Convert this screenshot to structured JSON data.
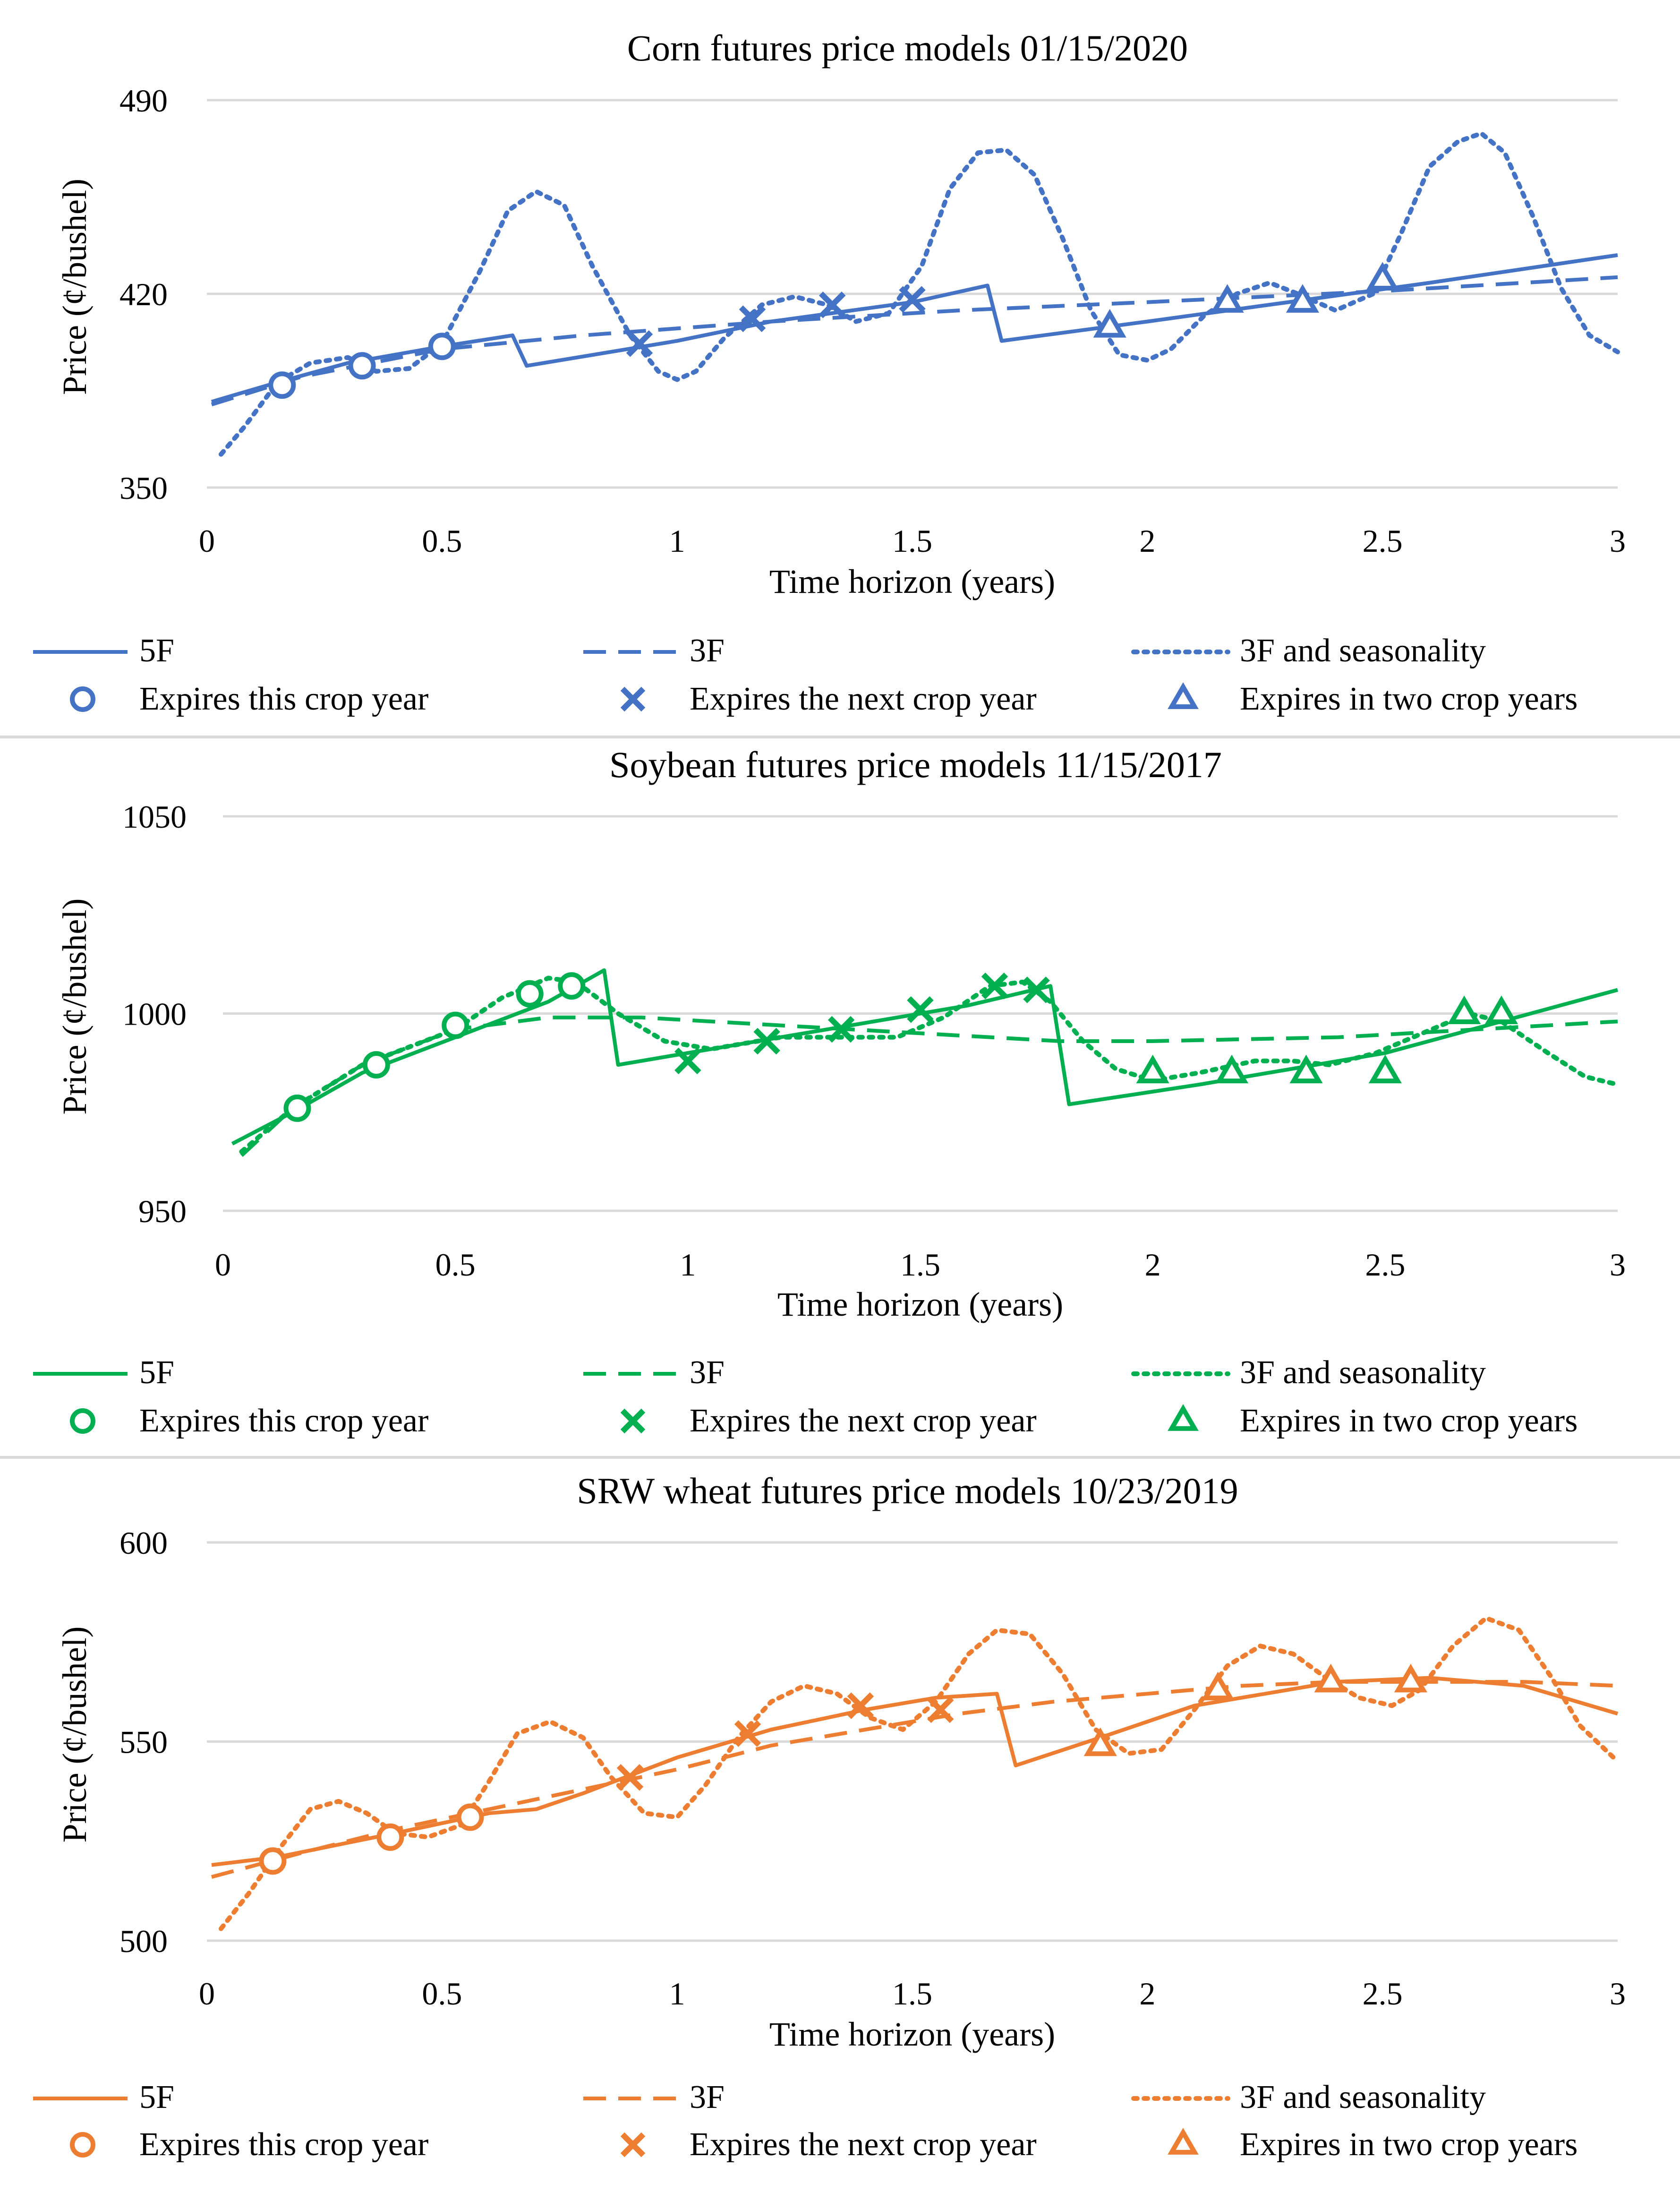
{
  "legend_labels": {
    "s5F": "5F",
    "s3F": "3F",
    "s3FS": "3F and seasonality",
    "this_year": "Expires this crop year",
    "next_year": "Expires the next crop year",
    "two_years": "Expires in two crop years"
  },
  "chart_data": [
    {
      "type": "line",
      "title": "Corn futures price models 01/15/2020",
      "xlabel": "Time horizon (years)",
      "ylabel": "Price (¢/bushel)",
      "xlim": [
        0,
        3
      ],
      "ylim": [
        350,
        490
      ],
      "xticks": [
        "0",
        "0.5",
        "1",
        "1.5",
        "2",
        "2.5",
        "3"
      ],
      "yticks": [
        "350",
        "420",
        "490"
      ],
      "grid": true,
      "legend_position": "bottom",
      "color": "#4472C4",
      "series": [
        {
          "name": "5F",
          "style": "solid",
          "x": [
            0.01,
            0.15,
            0.3,
            0.5,
            0.65,
            0.68,
            1.0,
            1.2,
            1.5,
            1.66,
            1.69,
            2.0,
            2.3,
            2.6,
            3.0
          ],
          "y": [
            381,
            388,
            395,
            401,
            405,
            394,
            403,
            410,
            417,
            423,
            403,
            410,
            417,
            424,
            434
          ]
        },
        {
          "name": "3F",
          "style": "dashed",
          "x": [
            0.01,
            0.2,
            0.5,
            0.8,
            1.2,
            1.6,
            2.0,
            2.5,
            3.0
          ],
          "y": [
            380,
            390,
            400,
            405,
            410,
            414,
            417,
            421,
            426
          ]
        },
        {
          "name": "3F and seasonality",
          "style": "dotted",
          "x": [
            0.03,
            0.08,
            0.15,
            0.22,
            0.3,
            0.36,
            0.43,
            0.5,
            0.58,
            0.64,
            0.7,
            0.76,
            0.82,
            0.9,
            0.96,
            1.0,
            1.04,
            1.1,
            1.18,
            1.25,
            1.32,
            1.38,
            1.45,
            1.52,
            1.58,
            1.64,
            1.7,
            1.76,
            1.82,
            1.88,
            1.94,
            2.0,
            2.05,
            2.12,
            2.19,
            2.26,
            2.32,
            2.4,
            2.48,
            2.54,
            2.6,
            2.66,
            2.71,
            2.76,
            2.82,
            2.88,
            2.94,
            3.0
          ],
          "y": [
            362,
            372,
            388,
            395,
            397,
            392,
            393,
            402,
            428,
            450,
            457,
            452,
            430,
            405,
            392,
            389,
            392,
            404,
            416,
            419,
            416,
            410,
            413,
            430,
            458,
            471,
            472,
            463,
            440,
            414,
            398,
            396,
            400,
            412,
            420,
            424,
            420,
            414,
            420,
            442,
            466,
            475,
            478,
            471,
            448,
            422,
            405,
            399
          ]
        }
      ],
      "markers": {
        "this_year": {
          "symbol": "circle",
          "x": [
            0.16,
            0.33,
            0.5
          ],
          "y": [
            387,
            394,
            401
          ]
        },
        "next_year": {
          "symbol": "x",
          "x": [
            0.92,
            1.16,
            1.33,
            1.5
          ],
          "y": [
            402,
            411,
            416,
            418
          ]
        },
        "two_years": {
          "symbol": "triangle",
          "x": [
            1.92,
            2.17,
            2.33,
            2.5
          ],
          "y": [
            408,
            417,
            417,
            425
          ]
        }
      }
    },
    {
      "type": "line",
      "title": "Soybean futures price models 11/15/2017",
      "xlabel": "Time horizon (years)",
      "ylabel": "Price (¢/bushel)",
      "xlim": [
        0,
        3
      ],
      "ylim": [
        950,
        1050
      ],
      "xticks": [
        "0",
        "0.5",
        "1",
        "1.5",
        "2",
        "2.5",
        "3"
      ],
      "yticks": [
        "950",
        "1000",
        "1050"
      ],
      "grid": true,
      "legend_position": "bottom",
      "color": "#00B050",
      "series": [
        {
          "name": "5F",
          "style": "solid",
          "x": [
            0.02,
            0.15,
            0.3,
            0.5,
            0.7,
            0.82,
            0.85,
            1.0,
            1.3,
            1.6,
            1.78,
            1.82,
            2.1,
            2.5,
            3.0
          ],
          "y": [
            967,
            975,
            985,
            994,
            1003,
            1011,
            987,
            990,
            996,
            1002,
            1007,
            977,
            982,
            990,
            1006
          ]
        },
        {
          "name": "3F",
          "style": "dashed",
          "x": [
            0.04,
            0.15,
            0.3,
            0.5,
            0.7,
            0.9,
            1.2,
            1.5,
            1.8,
            2.0,
            2.4,
            2.7,
            3.0
          ],
          "y": [
            964,
            976,
            987,
            996,
            999,
            999,
            997,
            995,
            993,
            993,
            994,
            996,
            998
          ]
        },
        {
          "name": "3F and seasonality",
          "style": "dotted",
          "x": [
            0.04,
            0.15,
            0.3,
            0.5,
            0.6,
            0.7,
            0.76,
            0.85,
            0.95,
            1.05,
            1.2,
            1.35,
            1.45,
            1.55,
            1.65,
            1.72,
            1.78,
            1.85,
            1.92,
            2.0,
            2.1,
            2.22,
            2.3,
            2.38,
            2.48,
            2.6,
            2.68,
            2.75,
            2.85,
            2.93,
            3.0
          ],
          "y": [
            965,
            976,
            987,
            996,
            1004,
            1009,
            1008,
            1000,
            993,
            991,
            994,
            994,
            994,
            999,
            1007,
            1008,
            1003,
            993,
            986,
            983,
            985,
            988,
            988,
            987,
            990,
            996,
            1000,
            998,
            990,
            984,
            982
          ]
        }
      ],
      "markers": {
        "this_year": {
          "symbol": "circle",
          "x": [
            0.16,
            0.33,
            0.5,
            0.66,
            0.75
          ],
          "y": [
            976,
            987,
            997,
            1005,
            1007
          ]
        },
        "next_year": {
          "symbol": "x",
          "x": [
            1.0,
            1.17,
            1.33,
            1.5,
            1.66,
            1.75
          ],
          "y": [
            988,
            993,
            996,
            1001,
            1007,
            1006
          ]
        },
        "two_years": {
          "symbol": "triangle",
          "x": [
            2.0,
            2.17,
            2.33,
            2.5,
            2.67,
            2.75
          ],
          "y": [
            985,
            985,
            985,
            985,
            1000,
            1000
          ]
        }
      }
    },
    {
      "type": "line",
      "title": "SRW wheat futures price models 10/23/2019",
      "xlabel": "Time horizon (years)",
      "ylabel": "Price (¢/bushel)",
      "xlim": [
        0,
        3
      ],
      "ylim": [
        500,
        600
      ],
      "xticks": [
        "0",
        "0.5",
        "1",
        "1.5",
        "2",
        "2.5",
        "3"
      ],
      "yticks": [
        "500",
        "550",
        "600"
      ],
      "grid": true,
      "legend_position": "bottom",
      "color": "#ED7D31",
      "series": [
        {
          "name": "5F",
          "style": "solid",
          "x": [
            0.01,
            0.15,
            0.4,
            0.6,
            0.7,
            0.8,
            1.0,
            1.2,
            1.4,
            1.55,
            1.68,
            1.72,
            1.9,
            2.1,
            2.4,
            2.6,
            2.8,
            3.0
          ],
          "y": [
            519,
            521,
            527,
            532,
            533,
            537,
            546,
            553,
            558,
            561,
            562,
            544,
            551,
            559,
            565,
            566,
            564,
            557
          ]
        },
        {
          "name": "3F",
          "style": "dashed",
          "x": [
            0.01,
            0.2,
            0.4,
            0.6,
            0.8,
            1.0,
            1.2,
            1.4,
            1.6,
            1.8,
            2.0,
            2.2,
            2.4,
            2.6,
            2.8,
            3.0
          ],
          "y": [
            516,
            522,
            528,
            533,
            538,
            543,
            549,
            553,
            557,
            560,
            562,
            564,
            565,
            565,
            565,
            564
          ]
        },
        {
          "name": "3F and seasonality",
          "style": "dotted",
          "x": [
            0.03,
            0.09,
            0.16,
            0.22,
            0.28,
            0.34,
            0.4,
            0.47,
            0.54,
            0.6,
            0.66,
            0.73,
            0.8,
            0.86,
            0.93,
            1.0,
            1.06,
            1.13,
            1.2,
            1.27,
            1.34,
            1.41,
            1.48,
            1.55,
            1.62,
            1.68,
            1.75,
            1.82,
            1.89,
            1.96,
            2.03,
            2.1,
            2.17,
            2.24,
            2.31,
            2.38,
            2.45,
            2.52,
            2.58,
            2.65,
            2.72,
            2.79,
            2.86,
            2.92,
            3.0
          ],
          "y": [
            503,
            512,
            524,
            533,
            535,
            532,
            527,
            526,
            529,
            540,
            552,
            555,
            551,
            541,
            532,
            531,
            539,
            551,
            560,
            564,
            562,
            556,
            553,
            560,
            572,
            578,
            577,
            567,
            553,
            547,
            548,
            558,
            569,
            574,
            572,
            566,
            561,
            559,
            563,
            574,
            581,
            578,
            566,
            554,
            545
          ]
        }
      ],
      "markers": {
        "this_year": {
          "symbol": "circle",
          "x": [
            0.14,
            0.39,
            0.56
          ],
          "y": [
            520,
            526,
            531
          ]
        },
        "next_year": {
          "symbol": "x",
          "x": [
            0.9,
            1.15,
            1.39,
            1.56
          ],
          "y": [
            541,
            552,
            559,
            558
          ]
        },
        "two_years": {
          "symbol": "triangle",
          "x": [
            1.9,
            2.15,
            2.39,
            2.56
          ],
          "y": [
            549,
            563,
            565,
            565
          ]
        }
      }
    }
  ]
}
